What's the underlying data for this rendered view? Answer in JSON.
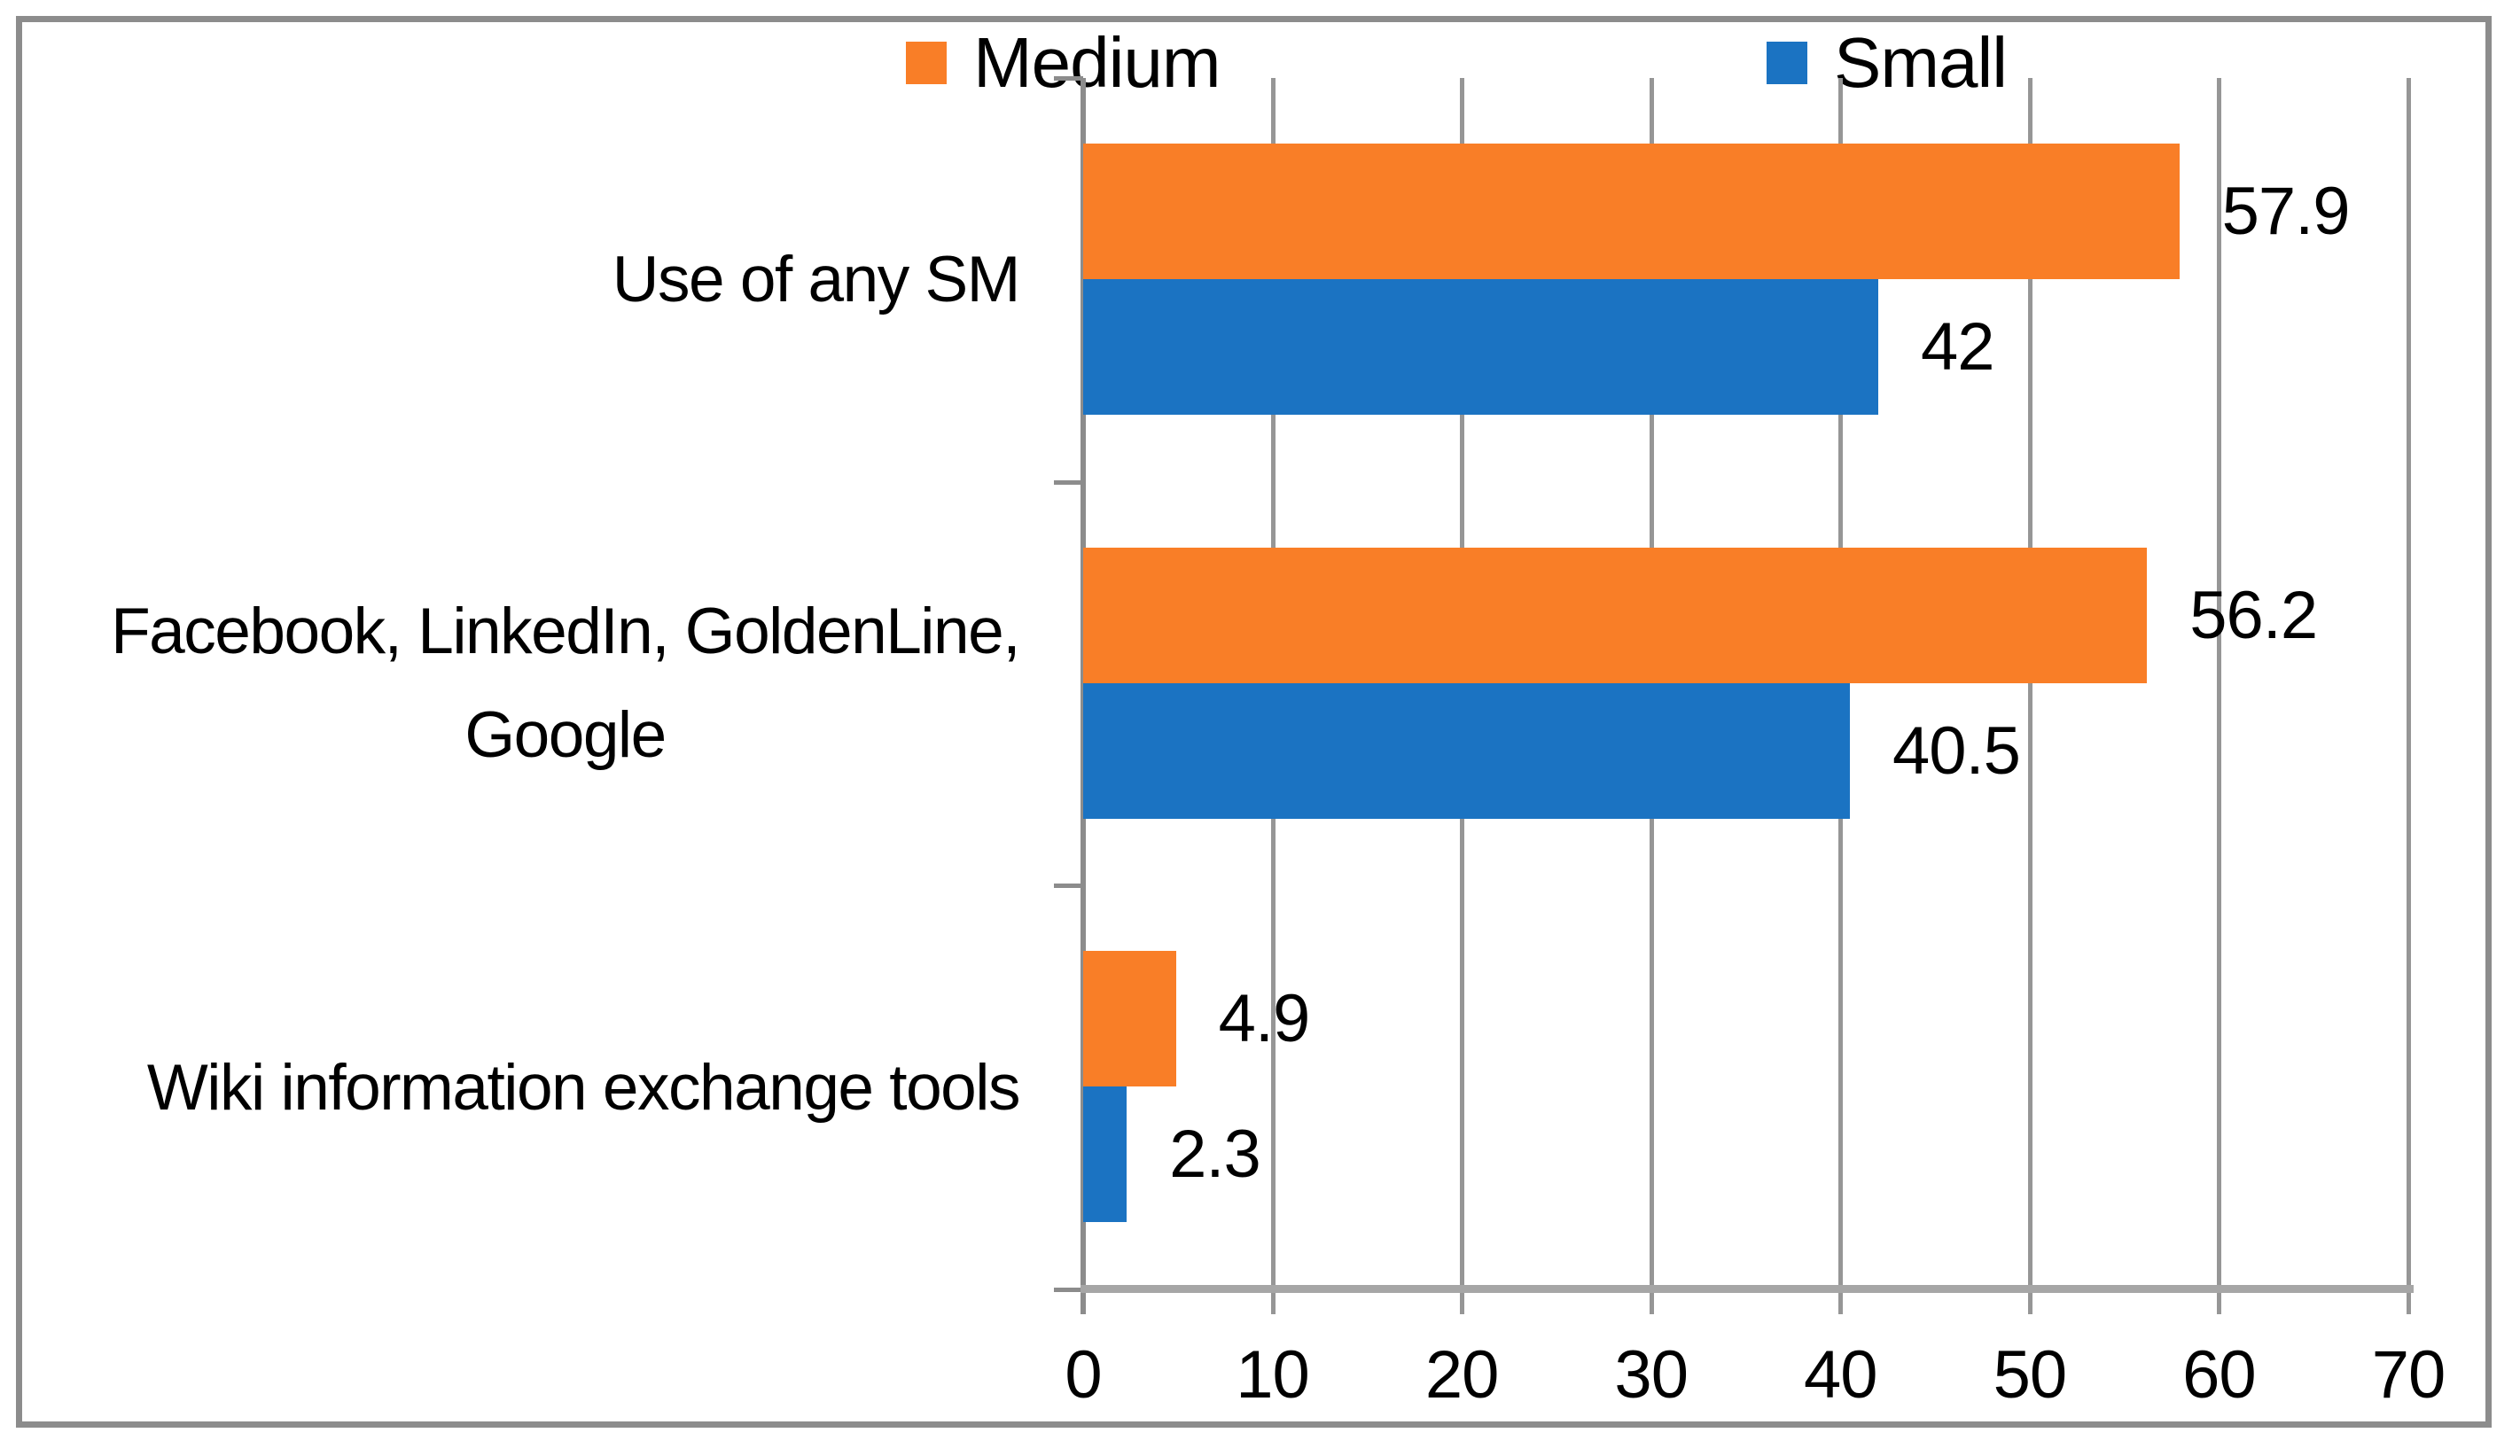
{
  "chart_data": {
    "type": "bar",
    "orientation": "horizontal",
    "title": "",
    "categories": [
      "Use of any SM",
      "Facebook, LinkedIn, GoldenLine, Google",
      "Wiki information exchange tools"
    ],
    "categories_lines": [
      [
        "Use of any SM"
      ],
      [
        "Facebook, LinkedIn, GoldenLine,",
        "Google"
      ],
      [
        "Wiki information exchange tools"
      ]
    ],
    "series": [
      {
        "name": "Medium",
        "color": "#F97E27",
        "values": [
          57.9,
          56.2,
          4.9
        ],
        "labels": [
          "57.9",
          "56.2",
          "4.9"
        ]
      },
      {
        "name": "Small",
        "color": "#1B73C2",
        "values": [
          42,
          40.5,
          2.3
        ],
        "labels": [
          "42",
          "40.5",
          "2.3"
        ]
      }
    ],
    "x_axis": {
      "min": 0,
      "max": 70,
      "tick_interval": 10,
      "ticks": [
        0,
        10,
        20,
        30,
        40,
        50,
        60,
        70
      ],
      "tick_labels": [
        "0",
        "10",
        "20",
        "30",
        "40",
        "50",
        "60",
        "70"
      ]
    },
    "legend": {
      "position": "top",
      "entries": [
        "Medium",
        "Small"
      ]
    },
    "grid": true,
    "data_labels": true,
    "style_colors": {
      "gridline": "#969696",
      "axis_line": "#A6A6A6",
      "category_axis": "#8C8C8C",
      "frame": "#8C8C8C",
      "text": "#000000",
      "background": "#FFFFFF"
    }
  }
}
